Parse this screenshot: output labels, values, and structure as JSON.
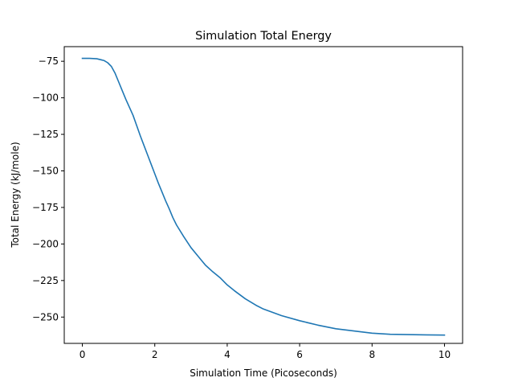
{
  "chart_data": {
    "type": "line",
    "title": "Simulation Total Energy",
    "xlabel": "Simulation Time (Picoseconds)",
    "ylabel": "Total Energy (kJ/mole)",
    "xlim": [
      -0.5,
      10.5
    ],
    "ylim": [
      -268,
      -65
    ],
    "xticks": [
      0,
      2,
      4,
      6,
      8,
      10
    ],
    "yticks": [
      -75,
      -100,
      -125,
      -150,
      -175,
      -200,
      -225,
      -250
    ],
    "xtick_labels": [
      "0",
      "2",
      "4",
      "6",
      "8",
      "10"
    ],
    "ytick_labels": [
      "−75",
      "−100",
      "−125",
      "−150",
      "−175",
      "−200",
      "−225",
      "−250"
    ],
    "grid": false,
    "series": [
      {
        "color": "#1f77b4",
        "x": [
          0,
          0.2,
          0.4,
          0.6,
          0.7,
          0.8,
          0.9,
          1.0,
          1.1,
          1.2,
          1.3,
          1.4,
          1.5,
          1.6,
          1.7,
          1.8,
          1.9,
          2.0,
          2.1,
          2.2,
          2.3,
          2.4,
          2.5,
          2.6,
          2.8,
          3.0,
          3.2,
          3.4,
          3.6,
          3.8,
          4.0,
          4.2,
          4.5,
          4.8,
          5.0,
          5.5,
          6.0,
          6.5,
          7.0,
          7.5,
          8.0,
          8.5,
          9.0,
          9.5,
          10.0
        ],
        "y": [
          -73,
          -73,
          -73.3,
          -74.5,
          -76,
          -78.5,
          -83,
          -89,
          -95,
          -101,
          -106.5,
          -112,
          -119,
          -126,
          -132.5,
          -139,
          -145.5,
          -152,
          -158.5,
          -164.5,
          -170.5,
          -176,
          -182,
          -187,
          -195,
          -202.5,
          -208.5,
          -214.5,
          -219,
          -223,
          -228,
          -232,
          -237.5,
          -242,
          -244.5,
          -249,
          -252.5,
          -255.5,
          -258,
          -259.5,
          -261,
          -261.8,
          -262,
          -262.2,
          -262.3
        ]
      }
    ]
  }
}
